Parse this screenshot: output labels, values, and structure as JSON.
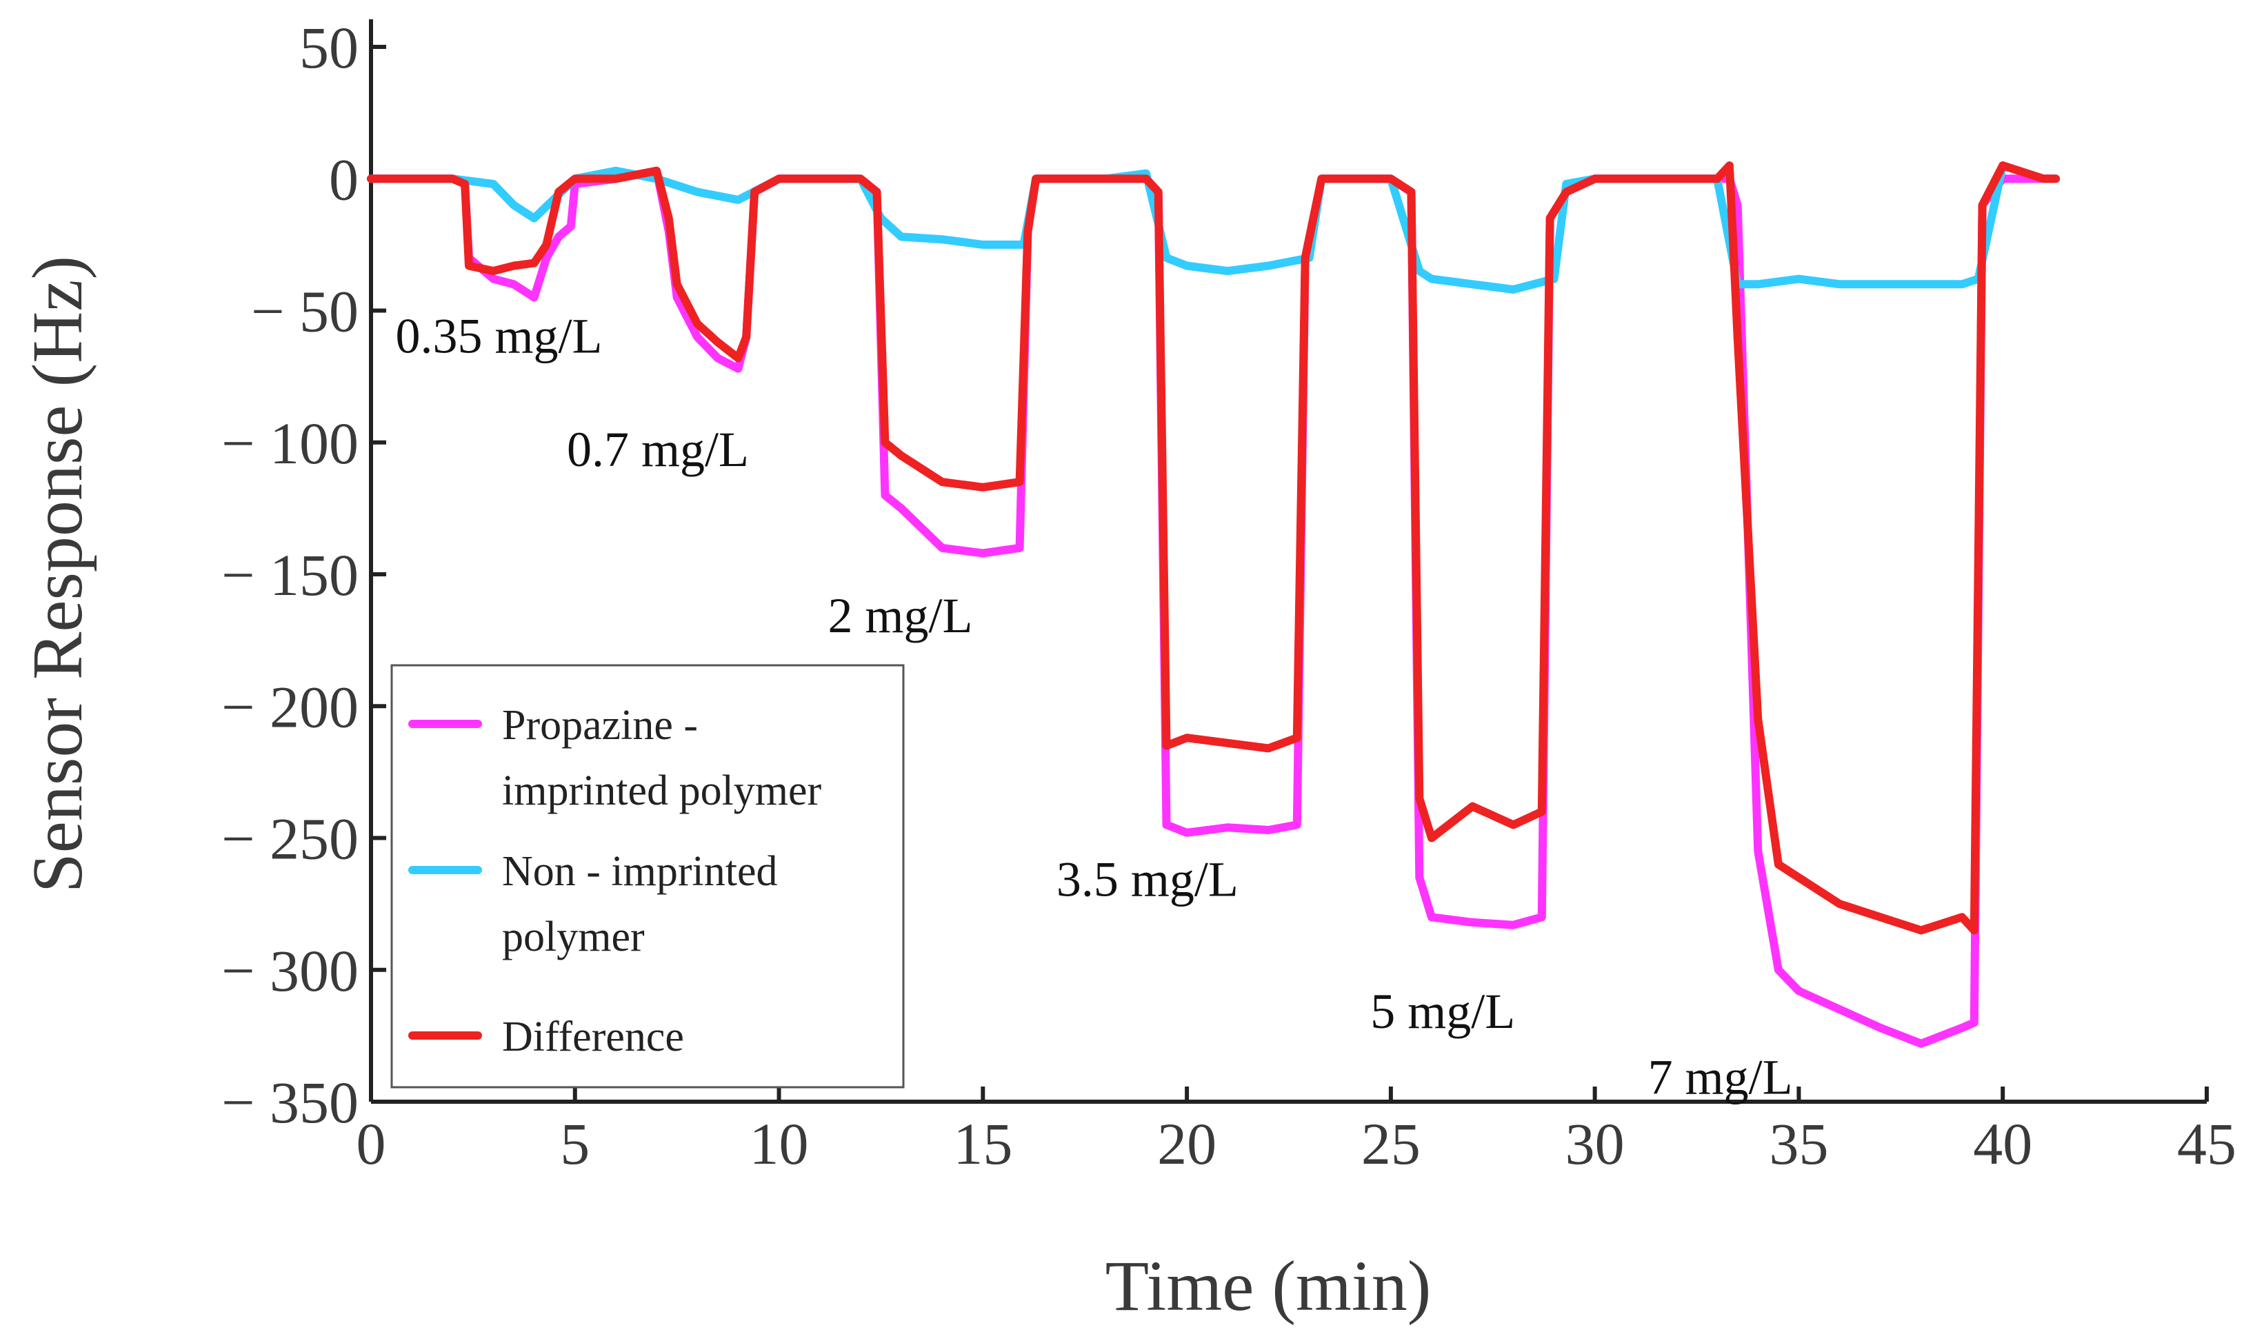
{
  "chart_data": {
    "type": "line",
    "xlabel": "Time (min)",
    "ylabel": "Sensor Response (Hz)",
    "xlim": [
      0,
      45
    ],
    "ylim": [
      -350,
      50
    ],
    "x_ticks": [
      {
        "value": 0,
        "label": "0"
      },
      {
        "value": 5,
        "label": "5"
      },
      {
        "value": 10,
        "label": "10"
      },
      {
        "value": 15,
        "label": "15"
      },
      {
        "value": 20,
        "label": "20"
      },
      {
        "value": 25,
        "label": "25"
      },
      {
        "value": 30,
        "label": "30"
      },
      {
        "value": 35,
        "label": "35"
      },
      {
        "value": 40,
        "label": "40"
      },
      {
        "value": 45,
        "label": "45"
      }
    ],
    "y_ticks": [
      {
        "value": 50,
        "label": "50"
      },
      {
        "value": 0,
        "label": "0"
      },
      {
        "value": -50,
        "label": "− 50"
      },
      {
        "value": -100,
        "label": "− 100"
      },
      {
        "value": -150,
        "label": "− 150"
      },
      {
        "value": -200,
        "label": "− 200"
      },
      {
        "value": -250,
        "label": "− 250"
      },
      {
        "value": -300,
        "label": "− 300"
      },
      {
        "value": -350,
        "label": "− 350"
      }
    ],
    "grid": false,
    "legend_position": "bottom-left",
    "series": [
      {
        "name": "Propazine - imprinted polymer",
        "legend_lines": [
          "Propazine -",
          "imprinted polymer"
        ],
        "color": "#ff33ff",
        "x": [
          0,
          1,
          2,
          2.3,
          2.4,
          3,
          3.5,
          4,
          4.3,
          4.6,
          4.9,
          5,
          6,
          7,
          7.3,
          7.5,
          8,
          8.5,
          9,
          9.2,
          9.4,
          10,
          11,
          12,
          12.4,
          12.6,
          13,
          14,
          15,
          15.9,
          16.1,
          16.3,
          17,
          18,
          19,
          19.3,
          19.5,
          20,
          21,
          22,
          22.7,
          22.9,
          23.3,
          24,
          25,
          25.5,
          25.7,
          26,
          27,
          28,
          28.7,
          28.9,
          29.3,
          30,
          31,
          32,
          33,
          33.3,
          33.5,
          34,
          34.5,
          35,
          36,
          37,
          38,
          39,
          39.3,
          39.5,
          40,
          41,
          41.3
        ],
        "values": [
          0,
          0,
          0,
          -2,
          -30,
          -38,
          -40,
          -45,
          -30,
          -22,
          -18,
          -2,
          0,
          3,
          -20,
          -45,
          -60,
          -68,
          -72,
          -60,
          -5,
          0,
          0,
          0,
          -5,
          -120,
          -125,
          -140,
          -142,
          -140,
          -20,
          0,
          0,
          0,
          0,
          -5,
          -245,
          -248,
          -246,
          -247,
          -245,
          -30,
          0,
          0,
          0,
          -5,
          -265,
          -280,
          -282,
          -283,
          -280,
          -15,
          -5,
          0,
          0,
          0,
          0,
          0,
          -10,
          -255,
          -300,
          -308,
          -315,
          -322,
          -328,
          -322,
          -320,
          -10,
          0,
          0,
          0
        ]
      },
      {
        "name": "Non - imprinted polymer",
        "legend_lines": [
          "Non - imprinted",
          "polymer"
        ],
        "color": "#33ccff",
        "x": [
          0,
          1,
          2,
          3,
          3.5,
          4,
          5,
          6,
          7,
          8,
          9,
          10,
          11,
          12,
          12.5,
          13,
          14,
          15,
          16,
          16.3,
          17,
          18,
          19,
          19.5,
          20,
          21,
          22,
          23,
          23.3,
          24,
          25,
          25.7,
          26,
          27,
          28,
          29,
          29.3,
          30,
          31,
          32,
          33,
          33.5,
          34,
          35,
          36,
          37,
          38,
          39,
          39.4,
          40,
          41,
          41.3
        ],
        "values": [
          0,
          0,
          0,
          -2,
          -10,
          -15,
          0,
          3,
          0,
          -5,
          -8,
          0,
          0,
          0,
          -15,
          -22,
          -23,
          -25,
          -25,
          0,
          0,
          0,
          2,
          -30,
          -33,
          -35,
          -33,
          -30,
          0,
          0,
          0,
          -35,
          -38,
          -40,
          -42,
          -38,
          -2,
          0,
          0,
          0,
          0,
          -40,
          -40,
          -38,
          -40,
          -40,
          -40,
          -40,
          -38,
          5,
          0,
          0
        ]
      },
      {
        "name": "Difference",
        "legend_lines": [
          "Difference"
        ],
        "color": "#ee2222",
        "x": [
          0,
          1,
          2,
          2.3,
          2.4,
          3,
          3.5,
          4,
          4.3,
          4.6,
          5,
          6,
          7,
          7.3,
          7.5,
          8,
          8.5,
          9,
          9.2,
          9.4,
          10,
          11,
          12,
          12.4,
          12.6,
          13,
          14,
          15,
          15.9,
          16.1,
          16.3,
          17,
          18,
          19,
          19.3,
          19.5,
          20,
          21,
          22,
          22.7,
          22.9,
          23.3,
          24,
          25,
          25.5,
          25.7,
          26,
          27,
          28,
          28.7,
          28.9,
          29.3,
          30,
          31,
          32,
          33,
          33.3,
          33.5,
          34,
          34.5,
          35,
          36,
          37,
          38,
          39,
          39.3,
          39.5,
          40,
          41,
          41.3
        ],
        "values": [
          0,
          0,
          0,
          -2,
          -33,
          -35,
          -33,
          -32,
          -25,
          -5,
          0,
          0,
          3,
          -15,
          -40,
          -55,
          -62,
          -68,
          -60,
          -5,
          0,
          0,
          0,
          -5,
          -100,
          -105,
          -115,
          -117,
          -115,
          -20,
          0,
          0,
          0,
          0,
          -5,
          -215,
          -212,
          -214,
          -216,
          -212,
          -30,
          0,
          0,
          0,
          -5,
          -235,
          -250,
          -238,
          -245,
          -240,
          -15,
          -5,
          0,
          0,
          0,
          0,
          5,
          -60,
          -205,
          -260,
          -265,
          -275,
          -280,
          -285,
          -280,
          -285,
          -10,
          5,
          0,
          0
        ]
      }
    ],
    "annotations": [
      {
        "text": "0.35 mg/L",
        "x": 0.6,
        "y": -66
      },
      {
        "text": "0.7 mg/L",
        "x": 4.8,
        "y": -109
      },
      {
        "text": "2 mg/L",
        "x": 11.2,
        "y": -172
      },
      {
        "text": "3.5 mg/L",
        "x": 16.8,
        "y": -272
      },
      {
        "text": "5 mg/L",
        "x": 24.5,
        "y": -322
      },
      {
        "text": "7 mg/L",
        "x": 31.3,
        "y": -347
      }
    ]
  }
}
